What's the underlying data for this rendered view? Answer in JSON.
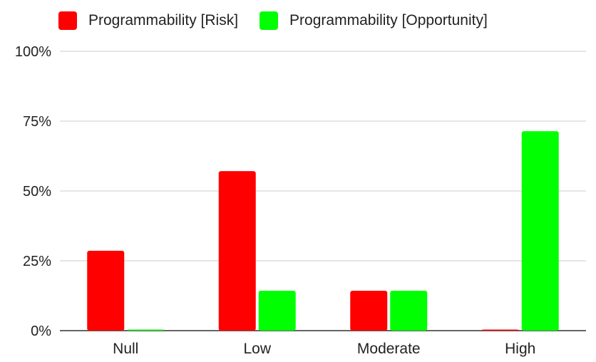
{
  "chart_data": {
    "type": "bar",
    "categories": [
      "Null",
      "Low",
      "Moderate",
      "High"
    ],
    "series": [
      {
        "name": "Programmability [Risk]",
        "color": "#ff0000",
        "values": [
          28.6,
          57.1,
          14.3,
          0
        ]
      },
      {
        "name": "Programmability [Opportunity]",
        "color": "#00ff00",
        "values": [
          0,
          14.3,
          14.3,
          71.4
        ]
      }
    ],
    "title": "",
    "xlabel": "",
    "ylabel": "",
    "ylim": [
      0,
      100
    ],
    "yticks": [
      "0%",
      "25%",
      "50%",
      "75%",
      "100%"
    ],
    "grid": true,
    "legend_position": "top-left"
  }
}
